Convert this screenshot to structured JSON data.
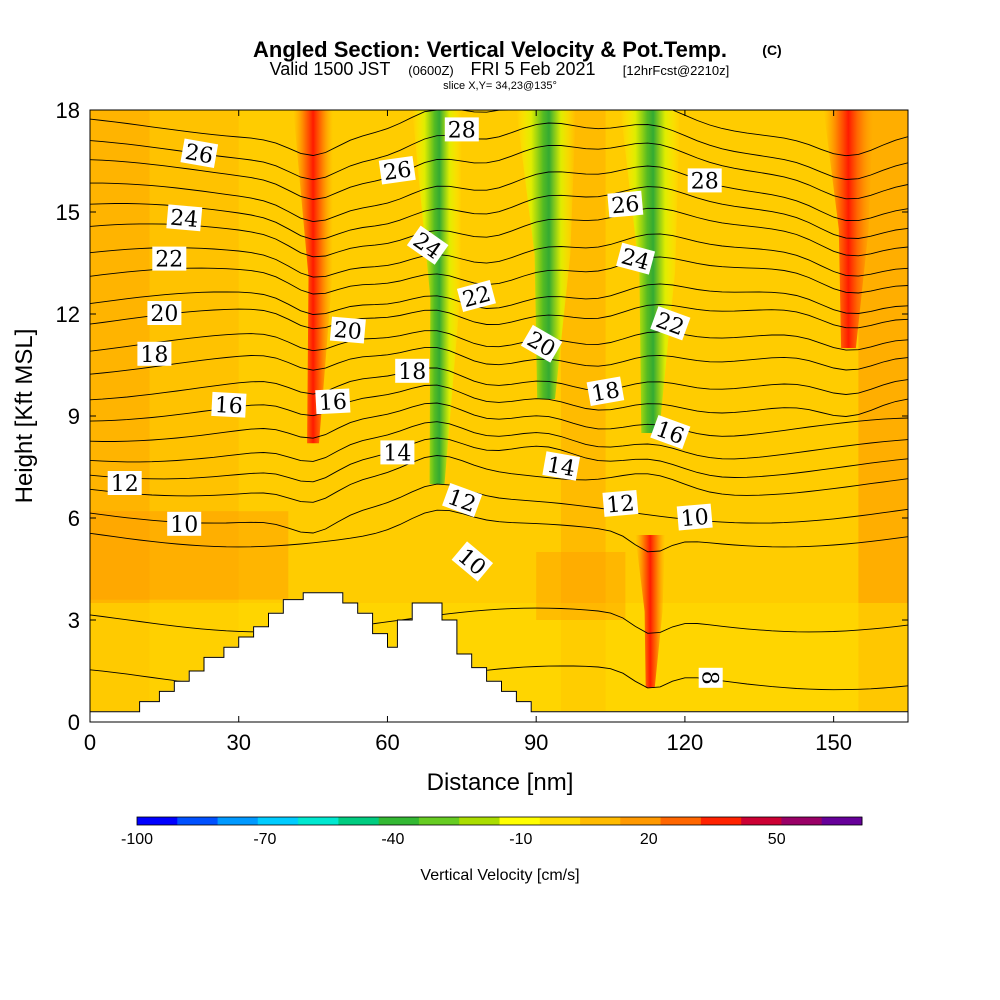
{
  "chart_data": {
    "type": "contour",
    "title": "Angled Section: Vertical Velocity & Pot.Temp.",
    "title_suffix": "(C)",
    "subtitle": {
      "valid": "Valid 1500 JST",
      "utc": "(0600Z)",
      "date": "FRI 5 Feb 2021",
      "fcst": "[12hrFcst@2210z]"
    },
    "slice": "slice X,Y= 34,23@135°",
    "xlabel": "Distance [nm]",
    "ylabel": "Height [Kft MSL]",
    "xlim": [
      0,
      165
    ],
    "ylim": [
      0,
      18
    ],
    "x_ticks": [
      "0",
      "30",
      "60",
      "90",
      "120",
      "150"
    ],
    "y_ticks": [
      "0",
      "3",
      "6",
      "9",
      "12",
      "15",
      "18"
    ],
    "x_tick_values": [
      0,
      30,
      60,
      90,
      120,
      150
    ],
    "y_tick_values": [
      0,
      3,
      6,
      9,
      12,
      15,
      18
    ],
    "colorbar": {
      "label": "Vertical Velocity [cm/s]",
      "tick_labels": [
        "-100",
        "-70",
        "-40",
        "-10",
        "20",
        "50"
      ],
      "tick_values": [
        -100,
        -70,
        -40,
        -10,
        20,
        50
      ],
      "range": [
        -100,
        70
      ],
      "step": 10,
      "colors": [
        "#0000ff",
        "#0050ff",
        "#0099ff",
        "#00ccff",
        "#00e8d0",
        "#00cc80",
        "#33b833",
        "#66cc22",
        "#aadd00",
        "#ffff00",
        "#ffdd00",
        "#ffbb00",
        "#ff9900",
        "#ff6600",
        "#ff2200",
        "#cc0033",
        "#990066",
        "#660099"
      ]
    },
    "terrain_profile": [
      [
        0,
        0.3
      ],
      [
        10,
        0.3
      ],
      [
        10,
        0.6
      ],
      [
        14,
        0.6
      ],
      [
        14,
        0.9
      ],
      [
        17,
        0.9
      ],
      [
        17,
        1.2
      ],
      [
        20,
        1.2
      ],
      [
        20,
        1.5
      ],
      [
        23,
        1.5
      ],
      [
        23,
        1.9
      ],
      [
        27,
        1.9
      ],
      [
        27,
        2.2
      ],
      [
        30,
        2.2
      ],
      [
        30,
        2.5
      ],
      [
        33,
        2.5
      ],
      [
        33,
        2.8
      ],
      [
        36,
        2.8
      ],
      [
        36,
        3.2
      ],
      [
        39,
        3.2
      ],
      [
        39,
        3.6
      ],
      [
        43,
        3.6
      ],
      [
        43,
        3.8
      ],
      [
        47,
        3.8
      ],
      [
        51,
        3.8
      ],
      [
        51,
        3.5
      ],
      [
        54,
        3.5
      ],
      [
        54,
        3.2
      ],
      [
        57,
        3.2
      ],
      [
        57,
        2.6
      ],
      [
        60,
        2.6
      ],
      [
        60,
        2.2
      ],
      [
        62,
        2.2
      ],
      [
        62,
        3.0
      ],
      [
        65,
        3.0
      ],
      [
        65,
        3.5
      ],
      [
        71,
        3.5
      ],
      [
        71,
        3.0
      ],
      [
        74,
        3.0
      ],
      [
        74,
        2.0
      ],
      [
        77,
        2.0
      ],
      [
        77,
        1.6
      ],
      [
        80,
        1.6
      ],
      [
        80,
        1.2
      ],
      [
        83,
        1.2
      ],
      [
        83,
        0.9
      ],
      [
        86,
        0.9
      ],
      [
        86,
        0.6
      ],
      [
        89,
        0.6
      ],
      [
        89,
        0.3
      ],
      [
        165,
        0.3
      ]
    ],
    "wind_bands": [
      {
        "x": 45,
        "half_width": 4,
        "top": 18,
        "bottom": 8.2,
        "value": 40
      },
      {
        "x": 70,
        "half_width": 5,
        "top": 18,
        "bottom": 7.0,
        "value": -40
      },
      {
        "x": 92,
        "half_width": 6,
        "top": 18,
        "bottom": 9.5,
        "value": -40
      },
      {
        "x": 113,
        "half_width": 6,
        "top": 18,
        "bottom": 8.5,
        "value": -40
      },
      {
        "x": 153,
        "half_width": 5,
        "top": 18,
        "bottom": 11.0,
        "value": 35
      },
      {
        "x": 113,
        "half_width": 3,
        "top": 5.5,
        "bottom": 1.0,
        "value": 40
      }
    ],
    "isotherms": [
      {
        "level": 8,
        "base": 1.3
      },
      {
        "level": 9,
        "base": 3.0
      },
      {
        "level": 10,
        "base": 5.5
      },
      {
        "level": 11,
        "base": 6.2
      },
      {
        "level": 12,
        "base": 7.0
      },
      {
        "level": 13,
        "base": 7.5
      },
      {
        "level": 14,
        "base": 8.0
      },
      {
        "level": 15,
        "base": 8.6
      },
      {
        "level": 16,
        "base": 9.2
      },
      {
        "level": 17,
        "base": 9.8
      },
      {
        "level": 18,
        "base": 10.5
      },
      {
        "level": 19,
        "base": 11.1
      },
      {
        "level": 20,
        "base": 11.8
      },
      {
        "level": 21,
        "base": 12.3
      },
      {
        "level": 22,
        "base": 13.0
      },
      {
        "level": 23,
        "base": 13.6
      },
      {
        "level": 24,
        "base": 14.3
      },
      {
        "level": 25,
        "base": 14.9
      },
      {
        "level": 26,
        "base": 15.5
      },
      {
        "level": 27,
        "base": 16.2
      },
      {
        "level": 28,
        "base": 16.8
      },
      {
        "level": 29,
        "base": 17.5
      }
    ],
    "contour_labels": [
      {
        "text": "26",
        "x": 22,
        "y": 16.7,
        "rot": 10
      },
      {
        "text": "26",
        "x": 62,
        "y": 16.2,
        "rot": -8
      },
      {
        "text": "28",
        "x": 75,
        "y": 17.4,
        "rot": 0
      },
      {
        "text": "28",
        "x": 124,
        "y": 15.9,
        "rot": 0
      },
      {
        "text": "24",
        "x": 19,
        "y": 14.8,
        "rot": 5
      },
      {
        "text": "24",
        "x": 68,
        "y": 14.0,
        "rot": 35
      },
      {
        "text": "26",
        "x": 108,
        "y": 15.2,
        "rot": -5
      },
      {
        "text": "22",
        "x": 16,
        "y": 13.6,
        "rot": 0
      },
      {
        "text": "24",
        "x": 110,
        "y": 13.6,
        "rot": 15
      },
      {
        "text": "22",
        "x": 78,
        "y": 12.5,
        "rot": -15
      },
      {
        "text": "22",
        "x": 117,
        "y": 11.7,
        "rot": 20
      },
      {
        "text": "20",
        "x": 15,
        "y": 12.0,
        "rot": 0
      },
      {
        "text": "20",
        "x": 52,
        "y": 11.5,
        "rot": 5
      },
      {
        "text": "20",
        "x": 91,
        "y": 11.1,
        "rot": 30
      },
      {
        "text": "18",
        "x": 13,
        "y": 10.8,
        "rot": 0
      },
      {
        "text": "18",
        "x": 65,
        "y": 10.3,
        "rot": 0
      },
      {
        "text": "18",
        "x": 104,
        "y": 9.7,
        "rot": -10
      },
      {
        "text": "16",
        "x": 28,
        "y": 9.3,
        "rot": 3
      },
      {
        "text": "16",
        "x": 49,
        "y": 9.4,
        "rot": -3
      },
      {
        "text": "16",
        "x": 117,
        "y": 8.5,
        "rot": 20
      },
      {
        "text": "14",
        "x": 62,
        "y": 7.9,
        "rot": 0
      },
      {
        "text": "14",
        "x": 95,
        "y": 7.5,
        "rot": 10
      },
      {
        "text": "12",
        "x": 7,
        "y": 7.0,
        "rot": 0
      },
      {
        "text": "12",
        "x": 75,
        "y": 6.5,
        "rot": 20
      },
      {
        "text": "12",
        "x": 107,
        "y": 6.4,
        "rot": -5
      },
      {
        "text": "10",
        "x": 19,
        "y": 5.8,
        "rot": 0
      },
      {
        "text": "10",
        "x": 77,
        "y": 4.7,
        "rot": 40
      },
      {
        "text": "10",
        "x": 122,
        "y": 6.0,
        "rot": -5
      },
      {
        "text": "8",
        "x": 125,
        "y": 1.3,
        "rot": 90
      }
    ]
  }
}
